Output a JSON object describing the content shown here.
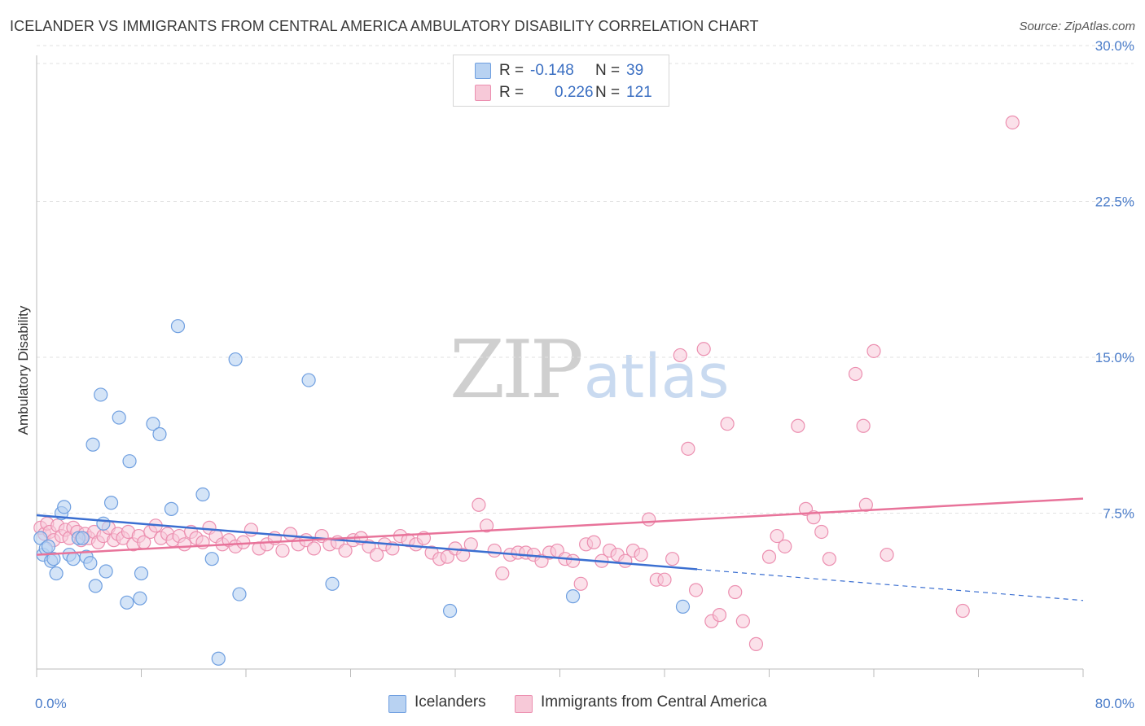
{
  "title": "ICELANDER VS IMMIGRANTS FROM CENTRAL AMERICA AMBULATORY DISABILITY CORRELATION CHART",
  "source": "Source: ZipAtlas.com",
  "watermark": {
    "zip": "ZIP",
    "atlas": "atlas"
  },
  "legend": {
    "r_label": "R =",
    "n_label": "N =",
    "rows": [
      {
        "r": "-0.148",
        "n": "39"
      },
      {
        "r": "0.226",
        "n": "121"
      }
    ]
  },
  "colors": {
    "blue_fill": "#b8d2f2",
    "blue_stroke": "#6f9fe0",
    "blue_line": "#3b6fd1",
    "pink_fill": "#f7c9d8",
    "pink_stroke": "#ec8fb0",
    "pink_line": "#e8739a",
    "tick_text": "#4a7cc9"
  },
  "chart_data": {
    "type": "scatter",
    "title": "ICELANDER VS IMMIGRANTS FROM CENTRAL AMERICA AMBULATORY DISABILITY CORRELATION CHART",
    "xlabel": "",
    "ylabel": "Ambulatory Disability",
    "xlim": [
      0,
      80
    ],
    "ylim": [
      0,
      31
    ],
    "x_tick_labels": [
      "0.0%",
      "80.0%"
    ],
    "y_ticks": [
      7.5,
      15.0,
      22.5,
      30.0
    ],
    "y_tick_labels": [
      "7.5%",
      "15.0%",
      "22.5%",
      "30.0%"
    ],
    "grid": "horizontal dashed",
    "series": [
      {
        "name": "Icelanders",
        "color": "#6f9fe0",
        "trend": {
          "x0": 0,
          "y0": 7.4,
          "x1": 50.5,
          "y1": 4.8,
          "dashed_to_x": 80,
          "dashed_to_y": 3.3
        },
        "points": [
          [
            0.3,
            6.3
          ],
          [
            0.5,
            5.5
          ],
          [
            0.7,
            5.8
          ],
          [
            0.9,
            5.9
          ],
          [
            1.1,
            5.2
          ],
          [
            1.3,
            5.3
          ],
          [
            1.5,
            4.6
          ],
          [
            1.9,
            7.5
          ],
          [
            2.1,
            7.8
          ],
          [
            2.5,
            5.5
          ],
          [
            2.8,
            5.3
          ],
          [
            3.2,
            6.3
          ],
          [
            3.5,
            6.3
          ],
          [
            3.8,
            5.4
          ],
          [
            4.1,
            5.1
          ],
          [
            4.3,
            10.8
          ],
          [
            4.5,
            4.0
          ],
          [
            4.9,
            13.2
          ],
          [
            5.1,
            7.0
          ],
          [
            5.3,
            4.7
          ],
          [
            5.7,
            8.0
          ],
          [
            6.3,
            12.1
          ],
          [
            6.9,
            3.2
          ],
          [
            7.1,
            10.0
          ],
          [
            7.9,
            3.4
          ],
          [
            8.0,
            4.6
          ],
          [
            8.9,
            11.8
          ],
          [
            9.4,
            11.3
          ],
          [
            10.3,
            7.7
          ],
          [
            10.8,
            16.5
          ],
          [
            12.7,
            8.4
          ],
          [
            13.4,
            5.3
          ],
          [
            13.9,
            0.5
          ],
          [
            15.2,
            14.9
          ],
          [
            15.5,
            3.6
          ],
          [
            20.8,
            13.9
          ],
          [
            22.6,
            4.1
          ],
          [
            31.6,
            2.8
          ],
          [
            41.0,
            3.5
          ],
          [
            49.4,
            3.0
          ]
        ]
      },
      {
        "name": "Immigrants from Central America",
        "color": "#ec8fb0",
        "trend": {
          "x0": 0,
          "y0": 5.5,
          "x1": 80,
          "y1": 8.2
        },
        "points": [
          [
            0.3,
            6.8
          ],
          [
            0.6,
            6.5
          ],
          [
            0.8,
            7.0
          ],
          [
            1.0,
            6.6
          ],
          [
            1.3,
            6.2
          ],
          [
            1.6,
            6.9
          ],
          [
            1.9,
            6.4
          ],
          [
            2.2,
            6.7
          ],
          [
            2.5,
            6.3
          ],
          [
            2.8,
            6.8
          ],
          [
            3.1,
            6.6
          ],
          [
            3.4,
            6.2
          ],
          [
            3.7,
            6.5
          ],
          [
            4.0,
            6.3
          ],
          [
            4.4,
            6.6
          ],
          [
            4.7,
            6.1
          ],
          [
            5.1,
            6.4
          ],
          [
            5.5,
            6.8
          ],
          [
            5.9,
            6.2
          ],
          [
            6.2,
            6.5
          ],
          [
            6.6,
            6.3
          ],
          [
            7.0,
            6.6
          ],
          [
            7.4,
            6.0
          ],
          [
            7.8,
            6.4
          ],
          [
            8.2,
            6.1
          ],
          [
            8.7,
            6.6
          ],
          [
            9.1,
            6.9
          ],
          [
            9.5,
            6.3
          ],
          [
            10.0,
            6.5
          ],
          [
            10.4,
            6.2
          ],
          [
            10.9,
            6.4
          ],
          [
            11.3,
            6.0
          ],
          [
            11.8,
            6.6
          ],
          [
            12.2,
            6.3
          ],
          [
            12.7,
            6.1
          ],
          [
            13.2,
            6.8
          ],
          [
            13.7,
            6.4
          ],
          [
            14.2,
            6.0
          ],
          [
            14.7,
            6.2
          ],
          [
            15.2,
            5.9
          ],
          [
            15.8,
            6.1
          ],
          [
            16.4,
            6.7
          ],
          [
            17.0,
            5.8
          ],
          [
            17.6,
            6.0
          ],
          [
            18.2,
            6.3
          ],
          [
            18.8,
            5.7
          ],
          [
            19.4,
            6.5
          ],
          [
            20.0,
            6.0
          ],
          [
            20.6,
            6.2
          ],
          [
            21.2,
            5.8
          ],
          [
            21.8,
            6.4
          ],
          [
            22.4,
            6.0
          ],
          [
            23.0,
            6.1
          ],
          [
            23.6,
            5.7
          ],
          [
            24.2,
            6.2
          ],
          [
            24.8,
            6.3
          ],
          [
            25.4,
            5.9
          ],
          [
            26.0,
            5.5
          ],
          [
            26.6,
            6.0
          ],
          [
            27.2,
            5.8
          ],
          [
            27.8,
            6.4
          ],
          [
            28.4,
            6.2
          ],
          [
            29.0,
            6.0
          ],
          [
            29.6,
            6.3
          ],
          [
            30.2,
            5.6
          ],
          [
            30.8,
            5.3
          ],
          [
            31.4,
            5.4
          ],
          [
            32.0,
            5.8
          ],
          [
            32.6,
            5.5
          ],
          [
            33.2,
            6.0
          ],
          [
            33.8,
            7.9
          ],
          [
            34.4,
            6.9
          ],
          [
            35.0,
            5.7
          ],
          [
            35.6,
            4.6
          ],
          [
            36.2,
            5.5
          ],
          [
            36.8,
            5.6
          ],
          [
            37.4,
            5.6
          ],
          [
            38.0,
            5.5
          ],
          [
            38.6,
            5.2
          ],
          [
            39.2,
            5.6
          ],
          [
            39.8,
            5.7
          ],
          [
            40.4,
            5.3
          ],
          [
            41.0,
            5.2
          ],
          [
            41.6,
            4.1
          ],
          [
            42.0,
            6.0
          ],
          [
            42.6,
            6.1
          ],
          [
            43.2,
            5.2
          ],
          [
            43.8,
            5.7
          ],
          [
            44.4,
            5.5
          ],
          [
            45.0,
            5.2
          ],
          [
            45.6,
            5.7
          ],
          [
            46.2,
            5.5
          ],
          [
            46.8,
            7.2
          ],
          [
            47.4,
            4.3
          ],
          [
            48.0,
            4.3
          ],
          [
            48.6,
            5.3
          ],
          [
            49.2,
            15.1
          ],
          [
            49.8,
            10.6
          ],
          [
            50.4,
            3.8
          ],
          [
            51.0,
            15.4
          ],
          [
            51.6,
            2.3
          ],
          [
            52.2,
            2.6
          ],
          [
            52.8,
            11.8
          ],
          [
            53.4,
            3.7
          ],
          [
            54.0,
            2.3
          ],
          [
            55.0,
            1.2
          ],
          [
            56.0,
            5.4
          ],
          [
            56.6,
            6.4
          ],
          [
            57.2,
            5.9
          ],
          [
            58.2,
            11.7
          ],
          [
            58.8,
            7.7
          ],
          [
            59.4,
            7.3
          ],
          [
            60.0,
            6.6
          ],
          [
            60.6,
            5.3
          ],
          [
            62.6,
            14.2
          ],
          [
            63.2,
            11.7
          ],
          [
            63.4,
            7.9
          ],
          [
            64.0,
            15.3
          ],
          [
            65.0,
            5.5
          ],
          [
            70.8,
            2.8
          ],
          [
            74.6,
            26.3
          ]
        ]
      }
    ]
  }
}
